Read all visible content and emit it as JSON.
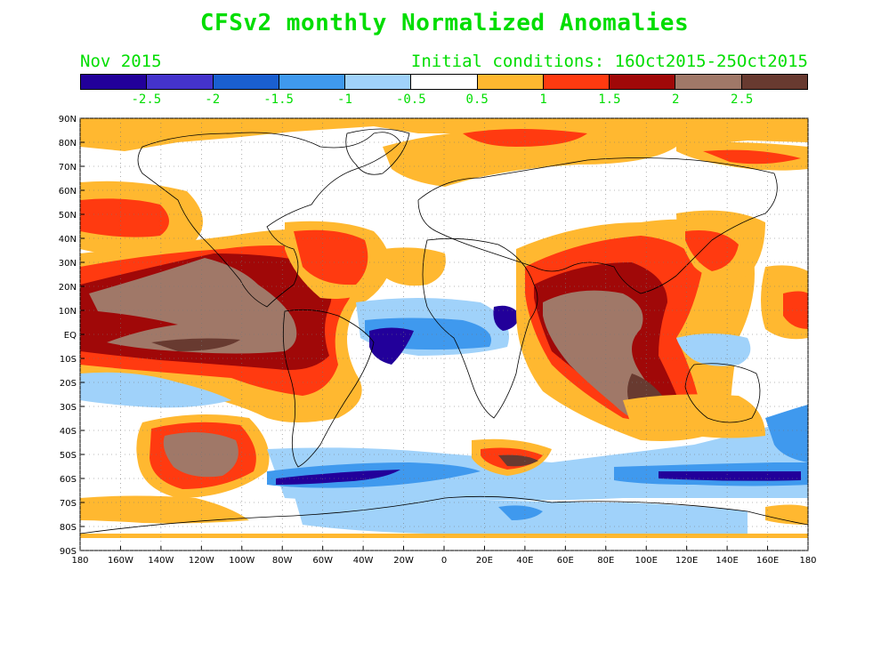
{
  "title": "CFSv2 monthly Normalized Anomalies",
  "month": "Nov 2015",
  "initial_conditions": "Initial conditions: 16Oct2015-25Oct2015",
  "colorbar": {
    "colors": [
      "#22009a",
      "#4433cc",
      "#1a5fd0",
      "#3f99ee",
      "#a0d2fa",
      "#ffffff",
      "#ffb830",
      "#ff3a10",
      "#a00808",
      "#a07868",
      "#683a30"
    ],
    "labels": [
      "-2.5",
      "-2",
      "-1.5",
      "-1",
      "-0.5",
      "0.5",
      "1",
      "1.5",
      "2",
      "2.5"
    ]
  },
  "lat_labels": [
    "90N",
    "80N",
    "70N",
    "60N",
    "50N",
    "40N",
    "30N",
    "20N",
    "10N",
    "EQ",
    "10S",
    "20S",
    "30S",
    "40S",
    "50S",
    "60S",
    "70S",
    "80S",
    "90S"
  ],
  "lon_labels": [
    "180",
    "160W",
    "140W",
    "120W",
    "100W",
    "80W",
    "60W",
    "40W",
    "20W",
    "0",
    "20E",
    "40E",
    "60E",
    "80E",
    "100E",
    "120E",
    "140E",
    "160E",
    "180"
  ],
  "palette": {
    "white": "#ffffff",
    "orange": "#ffb830",
    "red": "#ff3a10",
    "darkred": "#a00808",
    "brown": "#a07868",
    "darkbrown": "#683a30",
    "lightblue": "#a0d2fa",
    "blue": "#3f99ee",
    "medblue": "#1a5fd0",
    "navy": "#22009a"
  }
}
